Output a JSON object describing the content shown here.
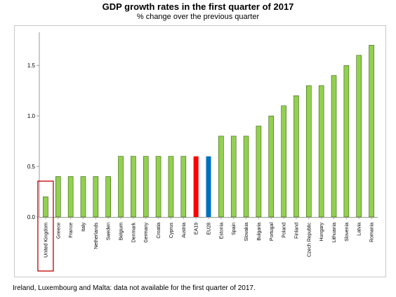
{
  "chart_data": {
    "type": "bar",
    "title": "GDP growth rates in the first quarter of 2017",
    "subtitle": "% change over the previous quarter",
    "categories": [
      "United Kingdom",
      "Greece",
      "France",
      "Italy",
      "Netherlands",
      "Sweden",
      "Belgium",
      "Denmark",
      "Germany",
      "Croatia",
      "Cyprus",
      "Austria",
      "EA19",
      "EU28",
      "Estonia",
      "Spain",
      "Slovakia",
      "Bulgaria",
      "Portugal",
      "Poland",
      "Finland",
      "Czech Republic",
      "Hungary",
      "Lithuania",
      "Slovenia",
      "Latvia",
      "Romania"
    ],
    "values": [
      0.2,
      0.4,
      0.4,
      0.4,
      0.4,
      0.4,
      0.6,
      0.6,
      0.6,
      0.6,
      0.6,
      0.6,
      0.6,
      0.6,
      0.8,
      0.8,
      0.8,
      0.9,
      1.0,
      1.1,
      1.2,
      1.3,
      1.3,
      1.4,
      1.5,
      1.6,
      1.7
    ],
    "yticks": [
      "0.0",
      "0.5",
      "1.0",
      "1.5"
    ],
    "ylim": [
      0,
      1.8
    ],
    "grid": false,
    "colors": {
      "default": "#92d050",
      "EA19": "#ff0000",
      "EU28": "#0070c0",
      "highlight_box": "#c00000"
    },
    "highlighted_category": "United Kingdom"
  },
  "footnote": "Ireland, Luxembourg and Malta: data not available for the first quarter of 2017."
}
